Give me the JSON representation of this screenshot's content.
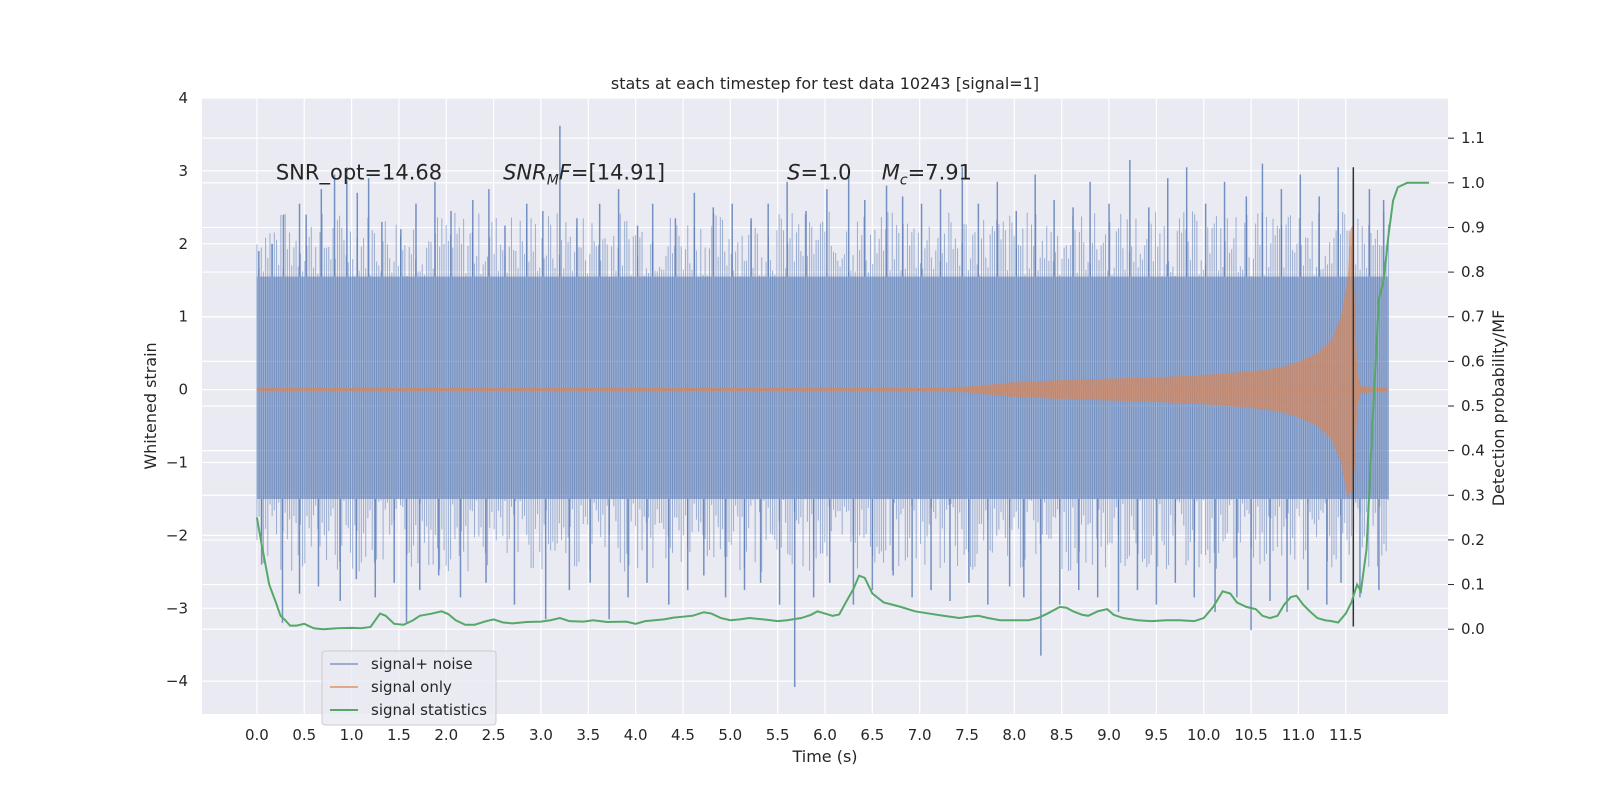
{
  "chart_data": {
    "type": "line",
    "title": "stats at each timestep for test data 10243 [signal=1]",
    "xlabel": "Time (s)",
    "ylabel": "Whitened strain",
    "ylabel_right": "Detection probability/MF",
    "xlim": [
      -0.58,
      12.58
    ],
    "ylim": [
      -4.45,
      4.0
    ],
    "ylim_right": [
      -0.19,
      1.19
    ],
    "grid": true,
    "legend_position": "lower-left",
    "x_ticks": [
      0.0,
      0.5,
      1.0,
      1.5,
      2.0,
      2.5,
      3.0,
      3.5,
      4.0,
      4.5,
      5.0,
      5.5,
      6.0,
      6.5,
      7.0,
      7.5,
      8.0,
      8.5,
      9.0,
      9.5,
      10.0,
      10.5,
      11.0,
      11.5
    ],
    "x_tick_labels": [
      "0.0",
      "0.5",
      "1.0",
      "1.5",
      "2.0",
      "2.5",
      "3.0",
      "3.5",
      "4.0",
      "4.5",
      "5.0",
      "5.5",
      "6.0",
      "6.5",
      "7.0",
      "7.5",
      "8.0",
      "8.5",
      "9.0",
      "9.5",
      "10.0",
      "10.5",
      "11.0",
      "11.5"
    ],
    "y_ticks": [
      -4,
      -3,
      -2,
      -1,
      0,
      1,
      2,
      3,
      4
    ],
    "y_tick_labels": [
      "−4",
      "−3",
      "−2",
      "−1",
      "0",
      "1",
      "2",
      "3",
      "4"
    ],
    "y_ticks_right": [
      0.0,
      0.1,
      0.2,
      0.3,
      0.4,
      0.5,
      0.6,
      0.7,
      0.8,
      0.9,
      1.0,
      1.1
    ],
    "y_tick_labels_right": [
      "0.0",
      "0.1",
      "0.2",
      "0.3",
      "0.4",
      "0.5",
      "0.6",
      "0.7",
      "0.8",
      "0.9",
      "1.0",
      "1.1"
    ],
    "annotations": [
      {
        "id": "snr-opt",
        "prefix": "SNR_opt=",
        "value": "14.68",
        "x": 0.2,
        "y": 2.88
      },
      {
        "id": "snr-mf",
        "italic": "SNR",
        "sub": "M",
        "suffix": "F=",
        "value": "[14.91]",
        "x": 2.6,
        "y": 2.88
      },
      {
        "id": "s-value",
        "italic": "S",
        "suffix": "=",
        "value": "1.0",
        "x": 5.6,
        "y": 2.88
      },
      {
        "id": "mc-value",
        "italic": "M",
        "sub": "c",
        "suffix": "=",
        "value": "7.91",
        "x": 6.6,
        "y": 2.88
      }
    ],
    "vline": {
      "x": 11.58,
      "y": [
        -3.25,
        3.05
      ],
      "color": "#333333"
    },
    "series": [
      {
        "name": "signal+ noise",
        "axis": "left",
        "color": "#4c72b0",
        "opacity": 0.5,
        "t_range": [
          0.0,
          11.95
        ],
        "band": [
          -1.5,
          1.55
        ],
        "spikes_pos": [
          [
            0.02,
            1.9
          ],
          [
            0.16,
            2.0
          ],
          [
            0.28,
            2.4
          ],
          [
            0.45,
            2.55
          ],
          [
            0.52,
            2.4
          ],
          [
            0.68,
            2.75
          ],
          [
            0.82,
            2.95
          ],
          [
            0.95,
            3.05
          ],
          [
            1.06,
            2.7
          ],
          [
            1.18,
            2.9
          ],
          [
            1.32,
            2.3
          ],
          [
            1.52,
            2.2
          ],
          [
            1.68,
            2.55
          ],
          [
            1.88,
            2.85
          ],
          [
            2.05,
            2.45
          ],
          [
            2.28,
            2.6
          ],
          [
            2.45,
            2.75
          ],
          [
            2.62,
            2.25
          ],
          [
            2.85,
            2.55
          ],
          [
            3.02,
            2.45
          ],
          [
            3.2,
            3.62
          ],
          [
            3.38,
            2.35
          ],
          [
            3.62,
            2.55
          ],
          [
            3.82,
            2.75
          ],
          [
            4.02,
            2.25
          ],
          [
            4.18,
            2.55
          ],
          [
            4.42,
            2.35
          ],
          [
            4.62,
            2.7
          ],
          [
            4.82,
            2.5
          ],
          [
            5.02,
            2.55
          ],
          [
            5.22,
            2.35
          ],
          [
            5.4,
            2.55
          ],
          [
            5.6,
            2.85
          ],
          [
            5.8,
            2.45
          ],
          [
            6.02,
            2.75
          ],
          [
            6.25,
            2.95
          ],
          [
            6.42,
            2.6
          ],
          [
            6.65,
            2.8
          ],
          [
            6.82,
            2.65
          ],
          [
            7.02,
            2.55
          ],
          [
            7.22,
            2.75
          ],
          [
            7.45,
            3.05
          ],
          [
            7.62,
            2.55
          ],
          [
            7.82,
            2.85
          ],
          [
            8.02,
            2.45
          ],
          [
            8.22,
            2.95
          ],
          [
            8.42,
            2.6
          ],
          [
            8.62,
            2.5
          ],
          [
            8.8,
            2.85
          ],
          [
            9.0,
            2.55
          ],
          [
            9.22,
            3.15
          ],
          [
            9.42,
            2.5
          ],
          [
            9.62,
            2.9
          ],
          [
            9.82,
            3.05
          ],
          [
            10.02,
            2.55
          ],
          [
            10.22,
            2.85
          ],
          [
            10.45,
            2.65
          ],
          [
            10.62,
            3.1
          ],
          [
            10.82,
            2.75
          ],
          [
            11.02,
            2.95
          ],
          [
            11.22,
            2.65
          ],
          [
            11.42,
            3.05
          ],
          [
            11.58,
            2.9
          ],
          [
            11.75,
            2.75
          ],
          [
            11.9,
            2.6
          ]
        ],
        "spikes_neg": [
          [
            0.05,
            -2.4
          ],
          [
            0.27,
            -3.2
          ],
          [
            0.45,
            -2.8
          ],
          [
            0.65,
            -2.7
          ],
          [
            0.88,
            -2.9
          ],
          [
            1.05,
            -2.6
          ],
          [
            1.25,
            -2.85
          ],
          [
            1.45,
            -2.65
          ],
          [
            1.58,
            -3.2
          ],
          [
            1.72,
            -2.75
          ],
          [
            1.92,
            -2.55
          ],
          [
            2.15,
            -2.85
          ],
          [
            2.42,
            -2.65
          ],
          [
            2.72,
            -2.95
          ],
          [
            3.05,
            -3.15
          ],
          [
            3.3,
            -2.75
          ],
          [
            3.52,
            -2.65
          ],
          [
            3.72,
            -3.15
          ],
          [
            3.92,
            -2.85
          ],
          [
            4.12,
            -2.65
          ],
          [
            4.35,
            -2.95
          ],
          [
            4.55,
            -2.75
          ],
          [
            4.72,
            -2.55
          ],
          [
            4.95,
            -2.85
          ],
          [
            5.15,
            -2.75
          ],
          [
            5.32,
            -2.65
          ],
          [
            5.52,
            -2.95
          ],
          [
            5.68,
            -4.08
          ],
          [
            5.88,
            -2.85
          ],
          [
            6.05,
            -2.65
          ],
          [
            6.3,
            -2.95
          ],
          [
            6.5,
            -2.75
          ],
          [
            6.72,
            -2.55
          ],
          [
            6.92,
            -2.85
          ],
          [
            7.12,
            -2.75
          ],
          [
            7.32,
            -2.9
          ],
          [
            7.52,
            -2.65
          ],
          [
            7.72,
            -2.95
          ],
          [
            7.95,
            -2.7
          ],
          [
            8.1,
            -2.85
          ],
          [
            8.28,
            -3.65
          ],
          [
            8.48,
            -2.95
          ],
          [
            8.68,
            -2.75
          ],
          [
            8.88,
            -2.85
          ],
          [
            9.1,
            -3.05
          ],
          [
            9.3,
            -2.75
          ],
          [
            9.5,
            -2.95
          ],
          [
            9.7,
            -2.65
          ],
          [
            9.9,
            -2.85
          ],
          [
            10.12,
            -3.05
          ],
          [
            10.35,
            -2.85
          ],
          [
            10.5,
            -3.3
          ],
          [
            10.7,
            -2.9
          ],
          [
            10.88,
            -3.05
          ],
          [
            11.1,
            -2.75
          ],
          [
            11.3,
            -2.95
          ],
          [
            11.45,
            -2.65
          ],
          [
            11.65,
            -2.85
          ],
          [
            11.85,
            -2.75
          ]
        ]
      },
      {
        "name": "signal only",
        "axis": "left",
        "color": "#dd8452",
        "opacity": 0.65,
        "envelope": [
          [
            0.0,
            0.02
          ],
          [
            7.0,
            0.02
          ],
          [
            7.5,
            0.04
          ],
          [
            8.0,
            0.1
          ],
          [
            8.5,
            0.13
          ],
          [
            9.0,
            0.15
          ],
          [
            9.5,
            0.17
          ],
          [
            10.0,
            0.2
          ],
          [
            10.5,
            0.25
          ],
          [
            10.8,
            0.3
          ],
          [
            11.0,
            0.38
          ],
          [
            11.2,
            0.5
          ],
          [
            11.35,
            0.68
          ],
          [
            11.45,
            1.0
          ],
          [
            11.52,
            1.5
          ],
          [
            11.55,
            2.2
          ],
          [
            11.57,
            2.25
          ],
          [
            11.6,
            1.0
          ],
          [
            11.62,
            0.3
          ],
          [
            11.65,
            0.05
          ],
          [
            11.95,
            0.02
          ]
        ],
        "envelope_note": "symmetric about 0; bottom minimum -1.4 near 11.55"
      },
      {
        "name": "signal statistics",
        "axis": "right",
        "color": "#55a868",
        "points": [
          [
            0.0,
            0.25
          ],
          [
            0.05,
            0.19
          ],
          [
            0.13,
            0.1
          ],
          [
            0.2,
            0.06
          ],
          [
            0.25,
            0.03
          ],
          [
            0.3,
            0.02
          ],
          [
            0.35,
            0.008
          ],
          [
            0.42,
            0.008
          ],
          [
            0.5,
            0.012
          ],
          [
            0.6,
            0.002
          ],
          [
            0.7,
            0.0
          ],
          [
            0.85,
            0.002
          ],
          [
            1.0,
            0.003
          ],
          [
            1.1,
            0.002
          ],
          [
            1.2,
            0.005
          ],
          [
            1.3,
            0.035
          ],
          [
            1.36,
            0.03
          ],
          [
            1.45,
            0.012
          ],
          [
            1.55,
            0.01
          ],
          [
            1.65,
            0.02
          ],
          [
            1.72,
            0.03
          ],
          [
            1.85,
            0.035
          ],
          [
            1.95,
            0.04
          ],
          [
            2.02,
            0.034
          ],
          [
            2.1,
            0.02
          ],
          [
            2.2,
            0.01
          ],
          [
            2.3,
            0.01
          ],
          [
            2.42,
            0.018
          ],
          [
            2.5,
            0.022
          ],
          [
            2.6,
            0.015
          ],
          [
            2.7,
            0.013
          ],
          [
            2.85,
            0.016
          ],
          [
            3.0,
            0.017
          ],
          [
            3.1,
            0.02
          ],
          [
            3.2,
            0.025
          ],
          [
            3.3,
            0.018
          ],
          [
            3.45,
            0.017
          ],
          [
            3.55,
            0.02
          ],
          [
            3.7,
            0.016
          ],
          [
            3.9,
            0.017
          ],
          [
            4.0,
            0.012
          ],
          [
            4.1,
            0.018
          ],
          [
            4.3,
            0.022
          ],
          [
            4.4,
            0.026
          ],
          [
            4.5,
            0.028
          ],
          [
            4.6,
            0.03
          ],
          [
            4.72,
            0.038
          ],
          [
            4.8,
            0.035
          ],
          [
            4.9,
            0.025
          ],
          [
            5.0,
            0.02
          ],
          [
            5.1,
            0.022
          ],
          [
            5.2,
            0.025
          ],
          [
            5.35,
            0.022
          ],
          [
            5.5,
            0.018
          ],
          [
            5.6,
            0.02
          ],
          [
            5.75,
            0.025
          ],
          [
            5.85,
            0.032
          ],
          [
            5.92,
            0.04
          ],
          [
            6.0,
            0.035
          ],
          [
            6.08,
            0.03
          ],
          [
            6.15,
            0.033
          ],
          [
            6.22,
            0.06
          ],
          [
            6.3,
            0.09
          ],
          [
            6.36,
            0.12
          ],
          [
            6.42,
            0.115
          ],
          [
            6.5,
            0.08
          ],
          [
            6.62,
            0.06
          ],
          [
            6.8,
            0.05
          ],
          [
            6.95,
            0.04
          ],
          [
            7.1,
            0.035
          ],
          [
            7.25,
            0.03
          ],
          [
            7.42,
            0.025
          ],
          [
            7.52,
            0.028
          ],
          [
            7.62,
            0.03
          ],
          [
            7.72,
            0.025
          ],
          [
            7.85,
            0.02
          ],
          [
            8.0,
            0.02
          ],
          [
            8.15,
            0.02
          ],
          [
            8.25,
            0.025
          ],
          [
            8.35,
            0.035
          ],
          [
            8.48,
            0.05
          ],
          [
            8.55,
            0.048
          ],
          [
            8.62,
            0.04
          ],
          [
            8.72,
            0.032
          ],
          [
            8.78,
            0.03
          ],
          [
            8.88,
            0.04
          ],
          [
            8.98,
            0.045
          ],
          [
            9.05,
            0.032
          ],
          [
            9.15,
            0.025
          ],
          [
            9.3,
            0.02
          ],
          [
            9.45,
            0.018
          ],
          [
            9.6,
            0.02
          ],
          [
            9.75,
            0.02
          ],
          [
            9.9,
            0.018
          ],
          [
            10.0,
            0.025
          ],
          [
            10.1,
            0.05
          ],
          [
            10.2,
            0.085
          ],
          [
            10.28,
            0.08
          ],
          [
            10.35,
            0.06
          ],
          [
            10.45,
            0.05
          ],
          [
            10.55,
            0.045
          ],
          [
            10.62,
            0.03
          ],
          [
            10.7,
            0.025
          ],
          [
            10.78,
            0.03
          ],
          [
            10.85,
            0.055
          ],
          [
            10.92,
            0.072
          ],
          [
            10.98,
            0.075
          ],
          [
            11.05,
            0.055
          ],
          [
            11.12,
            0.04
          ],
          [
            11.2,
            0.025
          ],
          [
            11.28,
            0.02
          ],
          [
            11.35,
            0.018
          ],
          [
            11.42,
            0.015
          ],
          [
            11.5,
            0.035
          ],
          [
            11.56,
            0.06
          ],
          [
            11.62,
            0.1
          ],
          [
            11.66,
            0.085
          ],
          [
            11.72,
            0.18
          ],
          [
            11.78,
            0.45
          ],
          [
            11.85,
            0.74
          ],
          [
            11.9,
            0.78
          ],
          [
            11.95,
            0.88
          ],
          [
            12.0,
            0.96
          ],
          [
            12.05,
            0.99
          ],
          [
            12.15,
            1.0
          ],
          [
            12.3,
            1.0
          ],
          [
            12.38,
            1.0
          ]
        ]
      }
    ]
  }
}
